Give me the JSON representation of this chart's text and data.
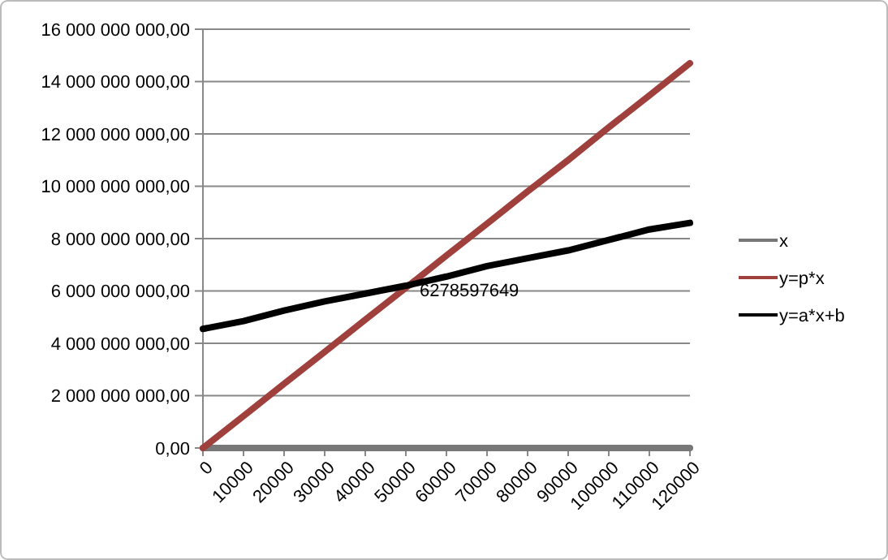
{
  "chart_data": {
    "type": "line",
    "x": [
      0,
      10000,
      20000,
      30000,
      40000,
      50000,
      60000,
      70000,
      80000,
      90000,
      100000,
      110000,
      120000
    ],
    "xlim": [
      0,
      120000
    ],
    "xticks": [
      0,
      10000,
      20000,
      30000,
      40000,
      50000,
      60000,
      70000,
      80000,
      90000,
      100000,
      110000,
      120000
    ],
    "ylim": [
      0,
      16000000000
    ],
    "yticks": [
      {
        "value": 0,
        "label": "0,00"
      },
      {
        "value": 2000000000,
        "label": "2 000 000 000,00"
      },
      {
        "value": 4000000000,
        "label": "4 000 000 000,00"
      },
      {
        "value": 6000000000,
        "label": "6 000 000 000,00"
      },
      {
        "value": 8000000000,
        "label": "8 000 000 000,00"
      },
      {
        "value": 10000000000,
        "label": "10 000 000 000,00"
      },
      {
        "value": 12000000000,
        "label": "12 000 000 000,00"
      },
      {
        "value": 14000000000,
        "label": "14 000 000 000,00"
      },
      {
        "value": 16000000000,
        "label": "16 000 000 000,00"
      }
    ],
    "series": [
      {
        "name": "x",
        "color": "#777777",
        "values": [
          0,
          0,
          0,
          0,
          0,
          0,
          0,
          0,
          0,
          0,
          0,
          0,
          0
        ]
      },
      {
        "name": "y=p*x",
        "color": "#a0403c",
        "values": [
          0,
          1220000000,
          2450000000,
          3670000000,
          4900000000,
          6120000000,
          7350000000,
          8570000000,
          9800000000,
          11000000000,
          12250000000,
          13470000000,
          14700000000
        ]
      },
      {
        "name": "y=a*x+b",
        "color": "#000000",
        "values": [
          4550000000,
          4850000000,
          5250000000,
          5600000000,
          5900000000,
          6200000000,
          6550000000,
          6950000000,
          7250000000,
          7550000000,
          7950000000,
          8350000000,
          8600000000
        ]
      }
    ],
    "annotations": [
      {
        "text": "6278597649",
        "x": 51000,
        "y": 6278597649
      }
    ],
    "grid": "y",
    "legend": "right",
    "marker": "none",
    "line_style": "solid"
  }
}
